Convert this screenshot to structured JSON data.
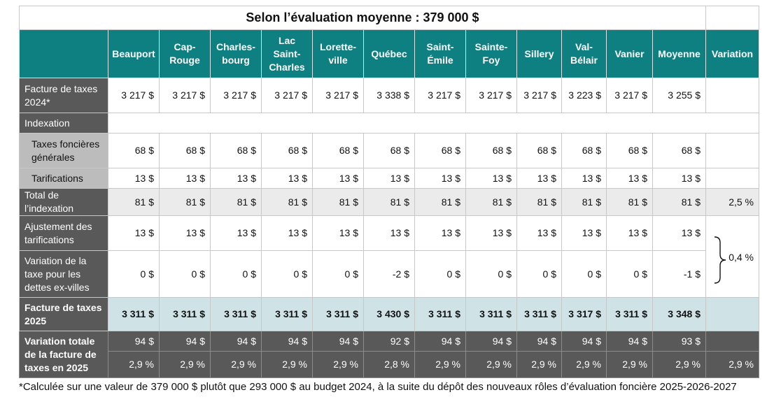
{
  "title": "Selon l’évaluation moyenne : 379 000 $",
  "columns": [
    "Beauport",
    "Cap-\nRouge",
    "Charles-\nbourg",
    "Lac\nSaint-\nCharles",
    "Lorette-\nville",
    "Québec",
    "Saint-\nÉmile",
    "Sainte-\nFoy",
    "Sillery",
    "Val-\nBélair",
    "Vanier",
    "Moyenne",
    "Variation"
  ],
  "rows": {
    "facture2024": {
      "label": "Facture de taxes 2024*",
      "values": [
        "3 217 $",
        "3 217 $",
        "3 217 $",
        "3 217 $",
        "3 217 $",
        "3 338 $",
        "3 217 $",
        "3 217 $",
        "3 217 $",
        "3 223 $",
        "3 217 $",
        "3 255 $"
      ],
      "variation": ""
    },
    "indexation": {
      "label": "Indexation"
    },
    "taxes_foncieres": {
      "label": "Taxes foncières générales",
      "values": [
        "68 $",
        "68 $",
        "68 $",
        "68 $",
        "68 $",
        "68 $",
        "68 $",
        "68 $",
        "68 $",
        "68 $",
        "68 $",
        "68 $"
      ],
      "variation": ""
    },
    "tarifications": {
      "label": "Tarifications",
      "values": [
        "13 $",
        "13 $",
        "13 $",
        "13 $",
        "13 $",
        "13 $",
        "13 $",
        "13 $",
        "13 $",
        "13 $",
        "13 $",
        "13 $"
      ],
      "variation": ""
    },
    "total_indexation": {
      "label": "Total de l’indexation",
      "values": [
        "81 $",
        "81 $",
        "81 $",
        "81 $",
        "81 $",
        "81 $",
        "81 $",
        "81 $",
        "81 $",
        "81 $",
        "81 $",
        "81 $"
      ],
      "variation": "2,5 %"
    },
    "ajustement": {
      "label": "Ajustement des tarifications",
      "values": [
        "13 $",
        "13 $",
        "13 $",
        "13 $",
        "13 $",
        "13 $",
        "13 $",
        "13 $",
        "13 $",
        "13 $",
        "13 $",
        "13 $"
      ]
    },
    "variation_dettes": {
      "label": "Variation de la taxe pour les dettes ex-villes",
      "values": [
        "0 $",
        "0 $",
        "0 $",
        "0 $",
        "0 $",
        "-2 $",
        "0 $",
        "0 $",
        "0 $",
        "0 $",
        "0 $",
        "-1 $"
      ]
    },
    "brace_variation": "0,4 %",
    "facture2025": {
      "label": "Facture de taxes 2025",
      "values": [
        "3 311 $",
        "3 311 $",
        "3 311 $",
        "3 311 $",
        "3 311 $",
        "3 430 $",
        "3 311 $",
        "3 311 $",
        "3 311 $",
        "3 317 $",
        "3 311 $",
        "3 348 $"
      ],
      "variation": ""
    },
    "variation_totale": {
      "label": "Variation totale de la facture de taxes en 2025",
      "dollars": [
        "94 $",
        "94 $",
        "94 $",
        "94 $",
        "94 $",
        "92 $",
        "94 $",
        "94 $",
        "94 $",
        "94 $",
        "94 $",
        "93 $"
      ],
      "percents": [
        "2,9 %",
        "2,9 %",
        "2,9 %",
        "2,9 %",
        "2,9 %",
        "2,8 %",
        "2,9 %",
        "2,9 %",
        "2,9 %",
        "2,9 %",
        "2,9 %",
        "2,9 %"
      ],
      "variation": "2,9 %"
    }
  },
  "footnote": "*Calculée sur une valeur de 379 000 $ plutôt que 293 000 $ au budget 2024, à la suite du dépôt des nouveaux rôles d’évaluation foncière 2025-2026-2027"
}
